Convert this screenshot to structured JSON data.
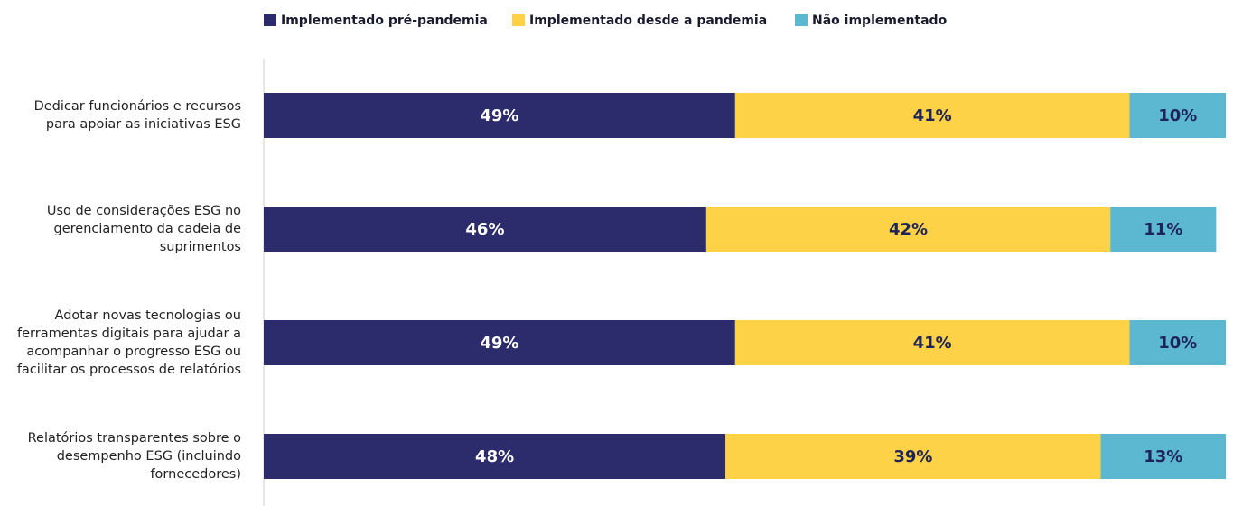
{
  "chart_data": {
    "type": "stacked-bar-horizontal",
    "categories": [
      "Dedicar funcionários e recursos para apoiar as iniciativas ESG",
      "Uso de considerações ESG no gerenciamento da cadeia de suprimentos",
      "Adotar novas tecnologias ou ferramentas digitais para ajudar a acompanhar o progresso ESG ou facilitar os processos de relatórios",
      "Relatórios transparentes sobre o desempenho ESG (incluindo fornecedores)"
    ],
    "series": [
      {
        "name": "Implementado pré-pandemia",
        "color": "#2c2c6c",
        "label_color": "#ffffff",
        "values": [
          49,
          46,
          49,
          48
        ],
        "value_labels": [
          "49%",
          "46%",
          "49%",
          "48%"
        ]
      },
      {
        "name": "Implementado desde a pandemia",
        "color": "#fdd247",
        "label_color": "#1f2458",
        "values": [
          41,
          42,
          41,
          39
        ],
        "value_labels": [
          "41%",
          "42%",
          "41%",
          "39%"
        ]
      },
      {
        "name": "Não implementado",
        "color": "#5bb8d0",
        "label_color": "#1f2458",
        "values": [
          10,
          11,
          10,
          13
        ],
        "value_labels": [
          "10%",
          "11%",
          "10%",
          "13%"
        ]
      }
    ],
    "xlim": [
      0,
      100
    ],
    "legend": "top"
  }
}
